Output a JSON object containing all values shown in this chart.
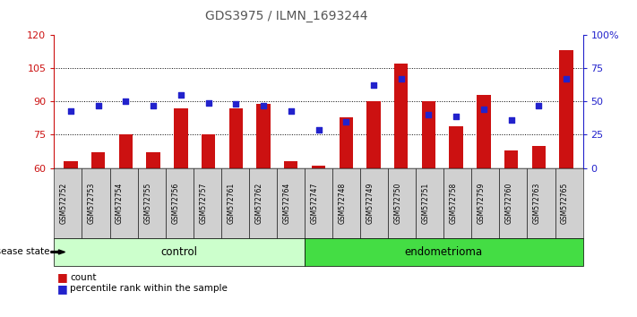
{
  "title": "GDS3975 / ILMN_1693244",
  "samples": [
    "GSM572752",
    "GSM572753",
    "GSM572754",
    "GSM572755",
    "GSM572756",
    "GSM572757",
    "GSM572761",
    "GSM572762",
    "GSM572764",
    "GSM572747",
    "GSM572748",
    "GSM572749",
    "GSM572750",
    "GSM572751",
    "GSM572758",
    "GSM572759",
    "GSM572760",
    "GSM572763",
    "GSM572765"
  ],
  "count_values": [
    63,
    67,
    75,
    67,
    87,
    75,
    87,
    89,
    63,
    61,
    83,
    90,
    107,
    90,
    79,
    93,
    68,
    70,
    113
  ],
  "percentile_values": [
    43,
    47,
    50,
    47,
    55,
    49,
    48,
    47,
    43,
    29,
    35,
    62,
    67,
    40,
    39,
    44,
    36,
    47,
    67
  ],
  "group_labels": [
    "control",
    "endometrioma"
  ],
  "n_control": 9,
  "n_endo": 10,
  "ylim_left": [
    60,
    120
  ],
  "ylim_right": [
    0,
    100
  ],
  "yticks_left": [
    60,
    75,
    90,
    105,
    120
  ],
  "yticks_right": [
    0,
    25,
    50,
    75,
    100
  ],
  "bar_color": "#cc1111",
  "dot_color": "#2222cc",
  "control_color": "#ccffcc",
  "endo_color": "#44dd44",
  "label_bg": "#d0d0d0",
  "left_axis_color": "#cc1111",
  "right_axis_color": "#2222cc"
}
